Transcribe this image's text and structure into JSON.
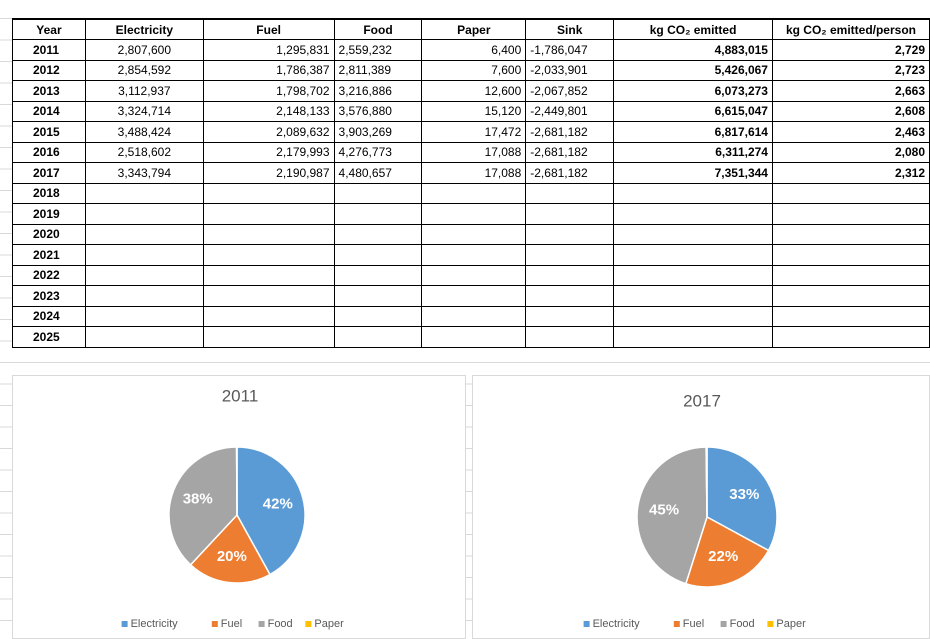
{
  "table": {
    "header": [
      "Year",
      "Electricity",
      "Fuel",
      "Food",
      "Paper",
      "Sink",
      "kg CO₂ emitted",
      "kg CO₂ emitted/person"
    ],
    "rows": [
      [
        "2011",
        "2,807,600",
        "1,295,831",
        "2,559,232",
        "6,400",
        "-1,786,047",
        "4,883,015",
        "2,729"
      ],
      [
        "2012",
        "2,854,592",
        "1,786,387",
        "2,811,389",
        "7,600",
        "-2,033,901",
        "5,426,067",
        "2,723"
      ],
      [
        "2013",
        "3,112,937",
        "1,798,702",
        "3,216,886",
        "12,600",
        "-2,067,852",
        "6,073,273",
        "2,663"
      ],
      [
        "2014",
        "3,324,714",
        "2,148,133",
        "3,576,880",
        "15,120",
        "-2,449,801",
        "6,615,047",
        "2,608"
      ],
      [
        "2015",
        "3,488,424",
        "2,089,632",
        "3,903,269",
        "17,472",
        "-2,681,182",
        "6,817,614",
        "2,463"
      ],
      [
        "2016",
        "2,518,602",
        "2,179,993",
        "4,276,773",
        "17,088",
        "-2,681,182",
        "6,311,274",
        "2,080"
      ],
      [
        "2017",
        "3,343,794",
        "2,190,987",
        "4,480,657",
        "17,088",
        "-2,681,182",
        "7,351,344",
        "2,312"
      ],
      [
        "2018"
      ],
      [
        "2019"
      ],
      [
        "2020"
      ],
      [
        "2021"
      ],
      [
        "2022"
      ],
      [
        "2023"
      ],
      [
        "2024"
      ],
      [
        "2025"
      ]
    ]
  },
  "chart_data": [
    {
      "type": "pie",
      "title": "2011",
      "categories": [
        "Electricity",
        "Fuel",
        "Food",
        "Paper"
      ],
      "values": [
        42,
        20,
        38,
        0.1
      ],
      "value_labels": [
        "42%",
        "20%",
        "38%",
        null
      ],
      "colors": [
        "#5b9bd5",
        "#ed7d31",
        "#a5a5a5",
        "#ffc000"
      ],
      "legend": "bottom"
    },
    {
      "type": "pie",
      "title": "2017",
      "categories": [
        "Electricity",
        "Fuel",
        "Food",
        "Paper"
      ],
      "values": [
        33,
        22,
        45,
        0.2
      ],
      "value_labels": [
        "33%",
        "22%",
        "45%",
        null
      ],
      "colors": [
        "#5b9bd5",
        "#ed7d31",
        "#a5a5a5",
        "#ffc000"
      ],
      "legend": "bottom"
    }
  ]
}
